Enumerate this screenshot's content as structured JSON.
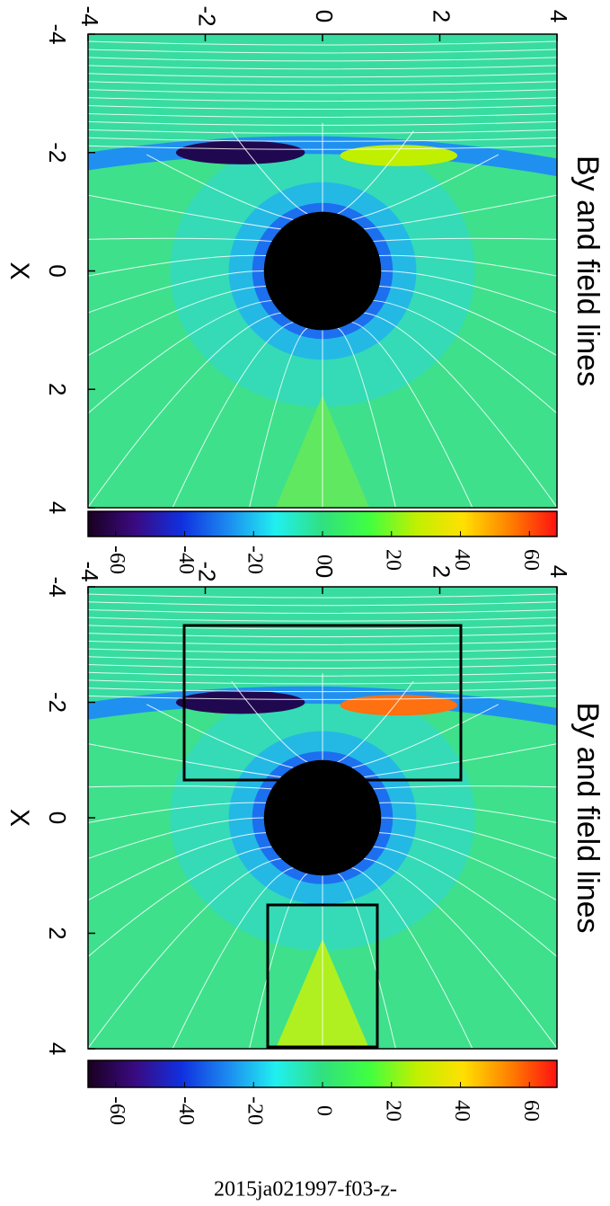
{
  "chart_data": [
    {
      "type": "contour",
      "title": "By and field lines",
      "xlabel": "X",
      "xlim": [
        -4,
        4
      ],
      "xticks": [
        -4,
        -2,
        0,
        2,
        4
      ],
      "ylim": [
        -4,
        4
      ],
      "yticks": [
        -4,
        -2,
        0,
        2,
        4
      ],
      "clim": [
        -68,
        68
      ],
      "cticks": [
        -60,
        -40,
        -20,
        0,
        20,
        40,
        60
      ],
      "colormap": [
        "#1a0020",
        "#3a0a80",
        "#1030e0",
        "#1c8cf0",
        "#20f0f0",
        "#30e080",
        "#40ff40",
        "#c0f000",
        "#ffe000",
        "#ff8000",
        "#ff1010"
      ]
    },
    {
      "type": "contour",
      "title": "By and field lines",
      "xlabel": "X",
      "xlim": [
        -4,
        4
      ],
      "xticks": [
        -4,
        -2,
        0,
        2,
        4
      ],
      "ylim": [
        -4,
        4
      ],
      "yticks": [
        -4,
        -2,
        0,
        2,
        4
      ],
      "clim": [
        -68,
        68
      ],
      "cticks": [
        -60,
        -40,
        -20,
        0,
        20,
        40,
        60
      ],
      "colormap": [
        "#1a0020",
        "#3a0a80",
        "#1030e0",
        "#1c8cf0",
        "#20f0f0",
        "#30e080",
        "#40ff40",
        "#c0f000",
        "#ffe000",
        "#ff8000",
        "#ff1010"
      ]
    }
  ],
  "caption": "2015ja021997-f03-z-"
}
